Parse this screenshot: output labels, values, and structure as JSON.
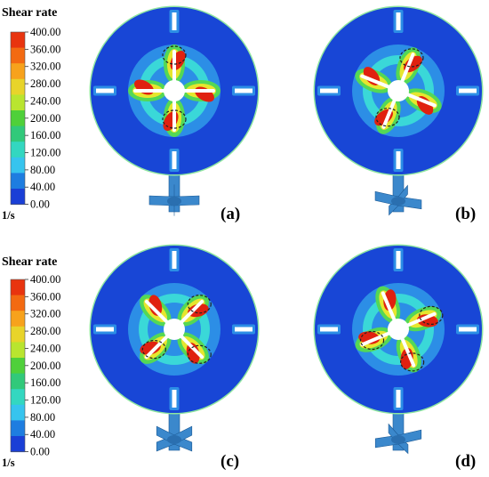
{
  "legend_top": {
    "title": "Shear rate",
    "ticks": [
      "400.00",
      "360.00",
      "320.00",
      "280.00",
      "240.00",
      "200.00",
      "160.00",
      "120.00",
      "80.00",
      "40.00",
      "0.00"
    ],
    "unit": "1/s"
  },
  "legend_bottom": {
    "title": "Shear rate",
    "ticks": [
      "400.00",
      "360.00",
      "320.00",
      "280.00",
      "240.00",
      "200.00",
      "160.00",
      "120.00",
      "80.00",
      "40.00",
      "0.00"
    ],
    "unit": "1/s"
  },
  "colorbar_colors": [
    "#e8340f",
    "#f36a12",
    "#f7a21c",
    "#e8d42a",
    "#b9e52f",
    "#4fd03a",
    "#31c97a",
    "#33d7c0",
    "#36c4ee",
    "#1e7de0",
    "#1a3fd6"
  ],
  "panels": [
    {
      "label": "(a)",
      "impeller_blade_angle_deg": 0
    },
    {
      "label": "(b)",
      "impeller_blade_angle_deg": 22
    },
    {
      "label": "(c)",
      "impeller_blade_angle_deg": 45
    },
    {
      "label": "(d)",
      "impeller_blade_angle_deg": 67
    }
  ],
  "colors": {
    "vessel_background": "#1846d6",
    "vessel_rim": "#8fe6a0",
    "mid_zone": "#2c8ee6",
    "cyan_zone": "#3ad8d8",
    "green_zone": "#54d855",
    "yellow_zone": "#e6e62e",
    "red_zone": "#e0210f",
    "shaft": "#3b88cc",
    "highlight_circle": "#222222"
  }
}
